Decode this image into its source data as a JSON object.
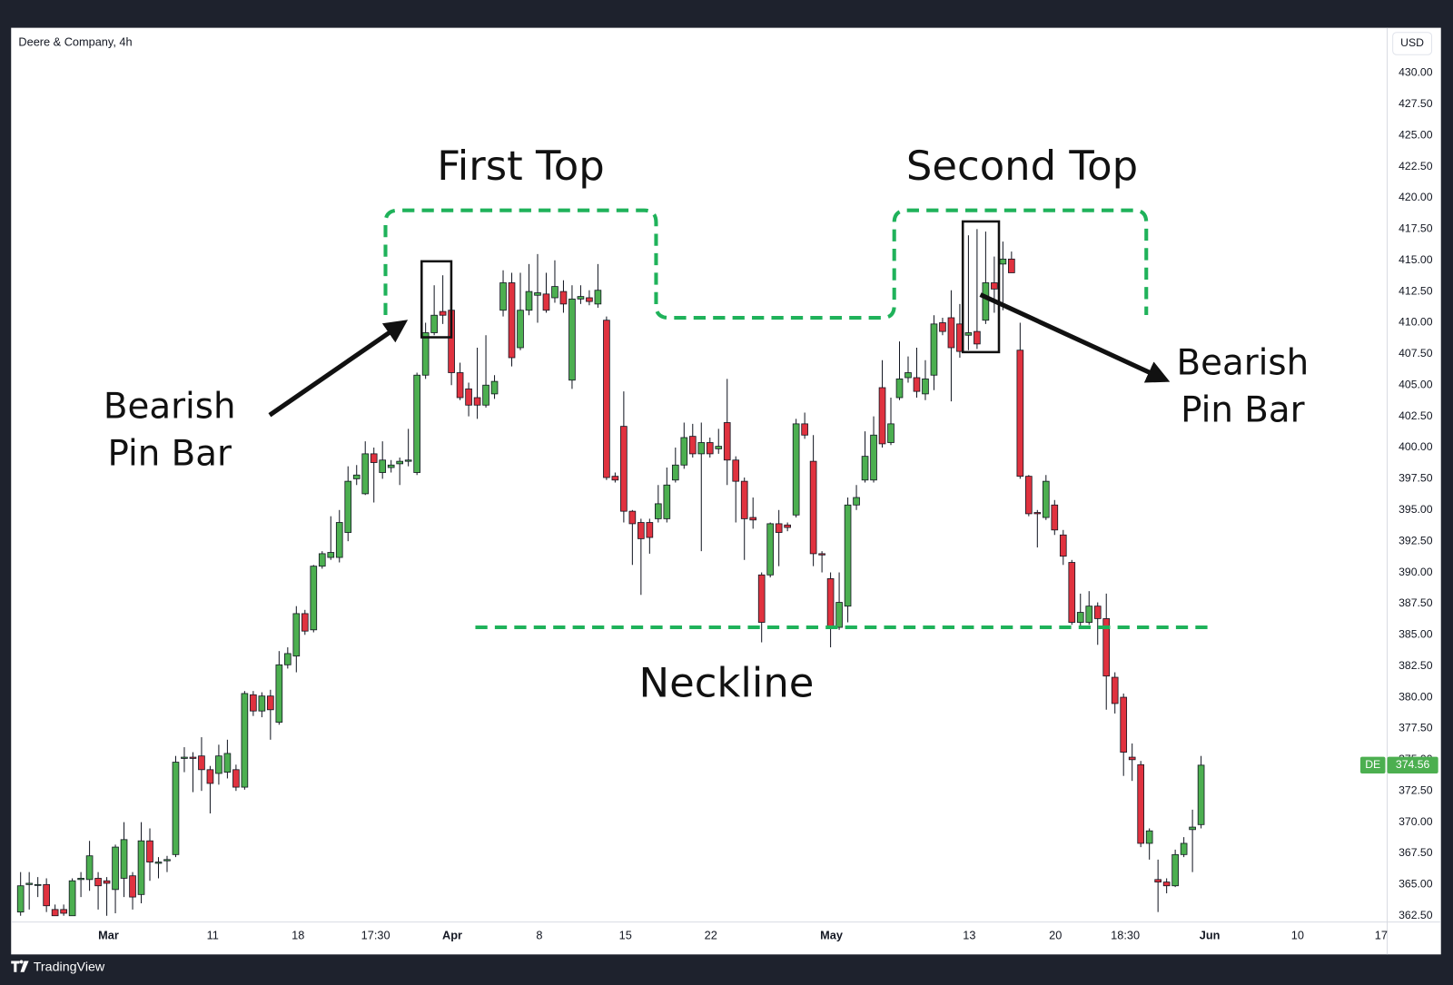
{
  "chart_data": {
    "type": "candlestick",
    "title": "Deere & Company, 4h",
    "currency": "USD",
    "symbol": "DE",
    "brand": "TradingView",
    "up_color": "#4caf50",
    "down_color": "#e0323f",
    "grid": false,
    "annotations": {
      "first_top": "First Top",
      "second_top": "Second Top",
      "left_pin_bar": [
        "Bearish",
        "Pin Bar"
      ],
      "right_pin_bar": [
        "Bearish",
        "Pin Bar"
      ],
      "neckline": "Neckline"
    },
    "open": [
      362.8,
      365,
      365,
      365,
      363,
      363,
      362.5,
      365.4,
      365.4,
      365.5,
      365.3,
      364.6,
      365.5,
      365.7,
      364.2,
      368.5,
      366.7,
      366.9,
      367.4,
      375.1,
      375.2,
      375.3,
      374.2,
      373.9,
      374,
      374.2,
      372.8,
      380.2,
      378.9,
      380.1,
      378,
      382.6,
      383.3,
      386.7,
      385.4,
      390.5,
      391.2,
      391.2,
      393.2,
      397.5,
      396.3,
      399.5,
      398,
      398.4,
      398.7,
      398.9,
      398,
      405.8,
      409.2,
      410.9,
      411,
      406,
      404.7,
      404,
      403.4,
      404.3,
      411,
      413.2,
      408,
      411,
      412.2,
      412.3,
      412,
      412.5,
      405.4,
      411.9,
      412,
      411.5,
      410.2,
      397.7,
      401.7,
      394.9,
      394,
      394,
      394.3,
      394.3,
      397.4,
      398.6,
      400.9,
      399.5,
      400.4,
      399.9,
      402,
      399,
      397.3,
      394.4,
      389.8,
      389.8,
      393.9,
      393.8,
      394.6,
      401.9,
      398.9,
      391.5,
      389.5,
      385.6,
      387.3,
      395.4,
      397.4,
      397.4,
      404.8,
      400.4,
      404,
      405.6,
      405.6,
      404.3,
      405.8,
      410,
      410.4,
      409.9,
      409,
      409.3,
      410.2,
      413.2,
      414.7,
      415.1,
      407.8,
      397.7,
      394.8,
      394.4,
      395.4,
      393,
      390.8,
      386,
      386,
      387.3,
      386.3,
      381.6,
      380,
      375.2,
      374.6,
      368.3,
      365.4,
      365.2,
      364.9,
      367.4,
      369.4,
      369.8
    ],
    "high": [
      366,
      366,
      365.6,
      365.5,
      363.4,
      363.4,
      365.5,
      366,
      368.5,
      366,
      365.6,
      368.2,
      370,
      366,
      370,
      369.5,
      367.2,
      367.3,
      375.3,
      376,
      375.6,
      376.8,
      374.5,
      376.2,
      376.6,
      374.6,
      380.5,
      380.5,
      380.4,
      380.6,
      383.7,
      384,
      387.3,
      387,
      390.6,
      391.7,
      394.5,
      395,
      398.5,
      398.6,
      400.5,
      400,
      400.5,
      399,
      399.2,
      401.5,
      406,
      410,
      413,
      413.8,
      411.5,
      406.8,
      405.2,
      408,
      409,
      405.8,
      414.2,
      414,
      414,
      414.7,
      415.5,
      414,
      415,
      413.4,
      413,
      413,
      412.6,
      414.7,
      410.5,
      398,
      404.5,
      395,
      394.3,
      394.3,
      397,
      398.4,
      400,
      402,
      401.9,
      402,
      400.8,
      401.5,
      405.5,
      399.3,
      397.6,
      396,
      390,
      394,
      395,
      394,
      402.3,
      402.8,
      401,
      391.7,
      390,
      390,
      396,
      397,
      401.3,
      402.5,
      407,
      404,
      408.5,
      407.3,
      408,
      407,
      410.6,
      410.4,
      412.6,
      411.5,
      417,
      417.5,
      417.3,
      415.3,
      416.5,
      415.7,
      410,
      397.8,
      395,
      397.8,
      395.8,
      393.4,
      391,
      388.3,
      388.5,
      387.6,
      388.3,
      382,
      380.3,
      376.3,
      374.9,
      369.5,
      367,
      365.5,
      367.8,
      368.8,
      371,
      375.3
    ],
    "low": [
      362.5,
      363,
      364,
      362.8,
      362.5,
      362.5,
      362.5,
      364,
      364.5,
      363,
      362.5,
      362.7,
      364,
      363,
      363.5,
      365.3,
      365.5,
      366,
      367.2,
      374,
      372.4,
      372.5,
      370.7,
      373,
      373.5,
      372.5,
      372.6,
      378.5,
      378.4,
      376.6,
      377.8,
      382.3,
      382,
      385,
      385.2,
      390.3,
      391,
      390.8,
      392.5,
      397,
      396.2,
      395.6,
      397.5,
      398,
      397,
      398.5,
      397.8,
      405.5,
      409,
      409.9,
      405,
      403.8,
      402.5,
      402.3,
      403.2,
      403.9,
      410.5,
      406.5,
      407.8,
      410.6,
      410,
      410.8,
      411.6,
      410.8,
      404.7,
      411.5,
      411.4,
      411.2,
      397.4,
      397.2,
      394,
      390.6,
      388.2,
      391.5,
      394,
      394,
      397.2,
      398.3,
      399.2,
      391.7,
      399.2,
      399.5,
      397,
      394,
      391,
      393.5,
      384.4,
      389.6,
      390.5,
      393.3,
      394.4,
      400.7,
      390.5,
      390,
      384,
      385.4,
      386,
      395,
      397.2,
      397.2,
      400,
      400.2,
      403.8,
      405.2,
      404,
      403.8,
      404.6,
      409,
      403.7,
      407.2,
      407.8,
      407.9,
      409.9,
      410.8,
      411,
      414,
      397.5,
      394.5,
      392,
      394.2,
      393,
      390.6,
      385.8,
      385.5,
      385.8,
      384.2,
      379,
      378.7,
      373.7,
      373.3,
      368,
      367,
      362.8,
      364.3,
      364.8,
      367.2,
      366,
      369.5
    ],
    "close": [
      364.9,
      365.1,
      365,
      363.3,
      362.5,
      362.7,
      365.3,
      365.5,
      367.3,
      364.9,
      365.1,
      368,
      368.6,
      364,
      368.5,
      366.8,
      366.8,
      367,
      374.8,
      375.2,
      375.1,
      374.2,
      373.1,
      375.3,
      375.5,
      372.8,
      380.3,
      378.9,
      380.1,
      379,
      382.6,
      383.5,
      386.7,
      385.3,
      390.5,
      391.5,
      391.6,
      394,
      397.3,
      397.8,
      399.5,
      398.8,
      399,
      398.6,
      398.9,
      399,
      405.8,
      409.2,
      410.6,
      410.6,
      406,
      404,
      403.4,
      403.4,
      405,
      405.3,
      413.2,
      407.2,
      411,
      412.5,
      412.4,
      411,
      412.9,
      411.5,
      411.9,
      412.1,
      411.7,
      412.6,
      397.6,
      397.4,
      394.9,
      393.9,
      392.7,
      392.8,
      395.5,
      397,
      398.6,
      400.8,
      399.5,
      400.4,
      399.5,
      400.1,
      399,
      397.3,
      394.3,
      394.2,
      386,
      393.9,
      393.2,
      393.6,
      401.9,
      401,
      391.5,
      391.4,
      385.6,
      387.6,
      395.4,
      396,
      399.3,
      401,
      400.3,
      401.9,
      405.5,
      406,
      404.5,
      405.5,
      409.9,
      409.3,
      408,
      407.7,
      409.2,
      408.3,
      413.2,
      412.7,
      415.1,
      414,
      397.7,
      394.7,
      394.7,
      397.3,
      393.4,
      391.3,
      386,
      386.8,
      387.3,
      386.3,
      381.7,
      379.5,
      375.6,
      375,
      368.3,
      369.3,
      365.2,
      364.9,
      367.4,
      368.3,
      369.6,
      374.56
    ],
    "xlim": [
      -1.1,
      158.6
    ],
    "xticks": [
      {
        "value": 10.2,
        "label": "Mar"
      },
      {
        "value": 22.3,
        "label": "11"
      },
      {
        "value": 32.2,
        "label": "18"
      },
      {
        "value": 41.2,
        "label": "17:30"
      },
      {
        "value": 50.1,
        "label": "Apr"
      },
      {
        "value": 60.2,
        "label": "8"
      },
      {
        "value": 70.2,
        "label": "15"
      },
      {
        "value": 80.1,
        "label": "22"
      },
      {
        "value": 94.1,
        "label": "May"
      },
      {
        "value": 110.1,
        "label": "13"
      },
      {
        "value": 120.1,
        "label": "20"
      },
      {
        "value": 128.2,
        "label": "18:30"
      },
      {
        "value": 138,
        "label": "Jun"
      },
      {
        "value": 148.2,
        "label": "10"
      },
      {
        "value": 157.9,
        "label": "17"
      }
    ],
    "ylim": [
      362,
      433.4
    ],
    "yticks": [
      {
        "value": 362.5,
        "label": "362.50"
      },
      {
        "value": 365,
        "label": "365.00"
      },
      {
        "value": 367.5,
        "label": "367.50"
      },
      {
        "value": 370,
        "label": "370.00"
      },
      {
        "value": 372.5,
        "label": "372.50"
      },
      {
        "value": 375,
        "label": "375.00"
      },
      {
        "value": 377.5,
        "label": "377.50"
      },
      {
        "value": 380,
        "label": "380.00"
      },
      {
        "value": 382.5,
        "label": "382.50"
      },
      {
        "value": 385,
        "label": "385.00"
      },
      {
        "value": 387.5,
        "label": "387.50"
      },
      {
        "value": 390,
        "label": "390.00"
      },
      {
        "value": 392.5,
        "label": "392.50"
      },
      {
        "value": 395,
        "label": "395.00"
      },
      {
        "value": 397.5,
        "label": "397.50"
      },
      {
        "value": 400,
        "label": "400.00"
      },
      {
        "value": 402.5,
        "label": "402.50"
      },
      {
        "value": 405,
        "label": "405.00"
      },
      {
        "value": 407.5,
        "label": "407.50"
      },
      {
        "value": 410,
        "label": "410.00"
      },
      {
        "value": 412.5,
        "label": "412.50"
      },
      {
        "value": 415,
        "label": "415.00"
      },
      {
        "value": 417.5,
        "label": "417.50"
      },
      {
        "value": 420,
        "label": "420.00"
      },
      {
        "value": 422.5,
        "label": "422.50"
      },
      {
        "value": 425,
        "label": "425.00"
      },
      {
        "value": 427.5,
        "label": "427.50"
      },
      {
        "value": 430,
        "label": "430.00"
      }
    ]
  }
}
